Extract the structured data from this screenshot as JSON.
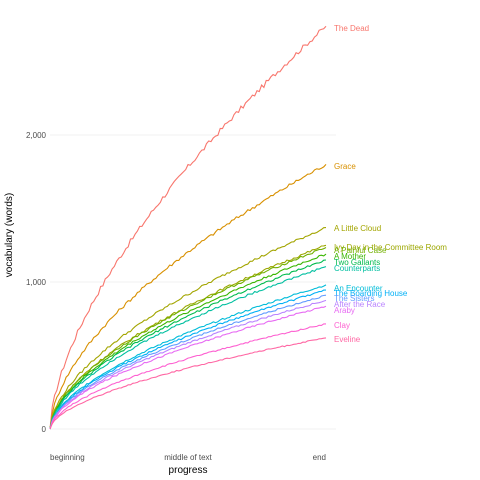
{
  "chart_data": {
    "type": "line",
    "xlabel": "progress",
    "ylabel": "vocabulary (words)",
    "x_ticks": [
      {
        "value": 0,
        "label": "beginning"
      },
      {
        "value": 0.5,
        "label": "middle of text"
      },
      {
        "value": 1,
        "label": "end"
      }
    ],
    "y_ticks": [
      {
        "value": 0,
        "label": "0"
      },
      {
        "value": 1000,
        "label": "1,000"
      },
      {
        "value": 2000,
        "label": "2,000"
      }
    ],
    "xlim": [
      0,
      1
    ],
    "ylim": [
      0,
      2800
    ],
    "grid": true,
    "legend": "direct labels at line ends",
    "series": [
      {
        "name": "The Dead",
        "color": "#F8766D",
        "final": 2740
      },
      {
        "name": "Grace",
        "color": "#D89000",
        "final": 1800
      },
      {
        "name": "A Little Cloud",
        "color": "#A3A500",
        "final": 1370
      },
      {
        "name": "Ivy Day in the Committee Room",
        "color": "#9CA700",
        "final": 1250
      },
      {
        "name": "A Painful Case",
        "color": "#72B000",
        "final": 1235
      },
      {
        "name": "A Mother",
        "color": "#39B600",
        "final": 1190
      },
      {
        "name": "Two Gallants",
        "color": "#00BB4E",
        "final": 1150
      },
      {
        "name": "Counterparts",
        "color": "#00BFA0",
        "final": 1105
      },
      {
        "name": "An Encounter",
        "color": "#00BCD8",
        "final": 980
      },
      {
        "name": "The Boarding House",
        "color": "#00B0F6",
        "final": 945
      },
      {
        "name": "The Sisters",
        "color": "#619CFF",
        "final": 910
      },
      {
        "name": "After the Race",
        "color": "#B983FF",
        "final": 875
      },
      {
        "name": "Araby",
        "color": "#E76BF3",
        "final": 835
      },
      {
        "name": "Clay",
        "color": "#FD61D1",
        "final": 715
      },
      {
        "name": "Eveline",
        "color": "#FF67A4",
        "final": 620
      }
    ]
  }
}
